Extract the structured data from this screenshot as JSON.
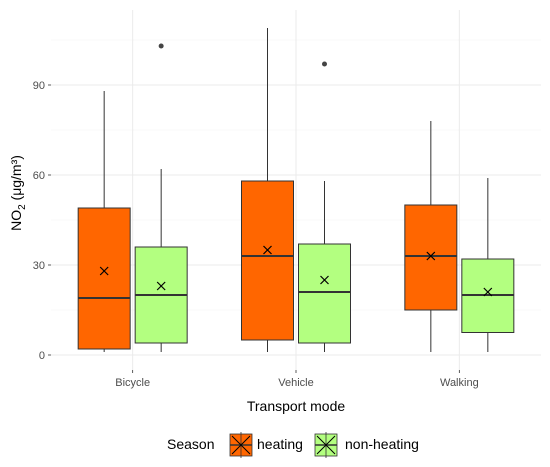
{
  "chart_data": {
    "type": "box",
    "xlabel": "Transport mode",
    "ylabel_main": "NO",
    "ylabel_sub": "2",
    "ylabel_unit": " (μg/m³)",
    "categories": [
      "Bicycle",
      "Vehicle",
      "Walking"
    ],
    "ylim": [
      -5,
      115
    ],
    "yticks": [
      0,
      30,
      60,
      90
    ],
    "legend_title": "Season",
    "legend_position": "bottom",
    "grid": true,
    "series": [
      {
        "name": "heating",
        "color": "#ff6600",
        "boxes": [
          {
            "min": 1,
            "q1": 2,
            "median": 19,
            "q3": 49,
            "max": 88,
            "mean": 28,
            "outliers": []
          },
          {
            "min": 1,
            "q1": 5,
            "median": 33,
            "q3": 58,
            "max": 109,
            "mean": 35,
            "outliers": []
          },
          {
            "min": 1,
            "q1": 15,
            "median": 33,
            "q3": 50,
            "max": 78,
            "mean": 33,
            "outliers": []
          }
        ]
      },
      {
        "name": "non-heating",
        "color": "#b3ff80",
        "boxes": [
          {
            "min": 1,
            "q1": 4,
            "median": 20,
            "q3": 36,
            "max": 62,
            "mean": 23,
            "outliers": [
              103
            ]
          },
          {
            "min": 1,
            "q1": 4,
            "median": 21,
            "q3": 37,
            "max": 58,
            "mean": 25,
            "outliers": [
              97
            ]
          },
          {
            "min": 1,
            "q1": 7.5,
            "median": 20,
            "q3": 32,
            "max": 59,
            "mean": 21,
            "outliers": []
          }
        ]
      }
    ]
  }
}
